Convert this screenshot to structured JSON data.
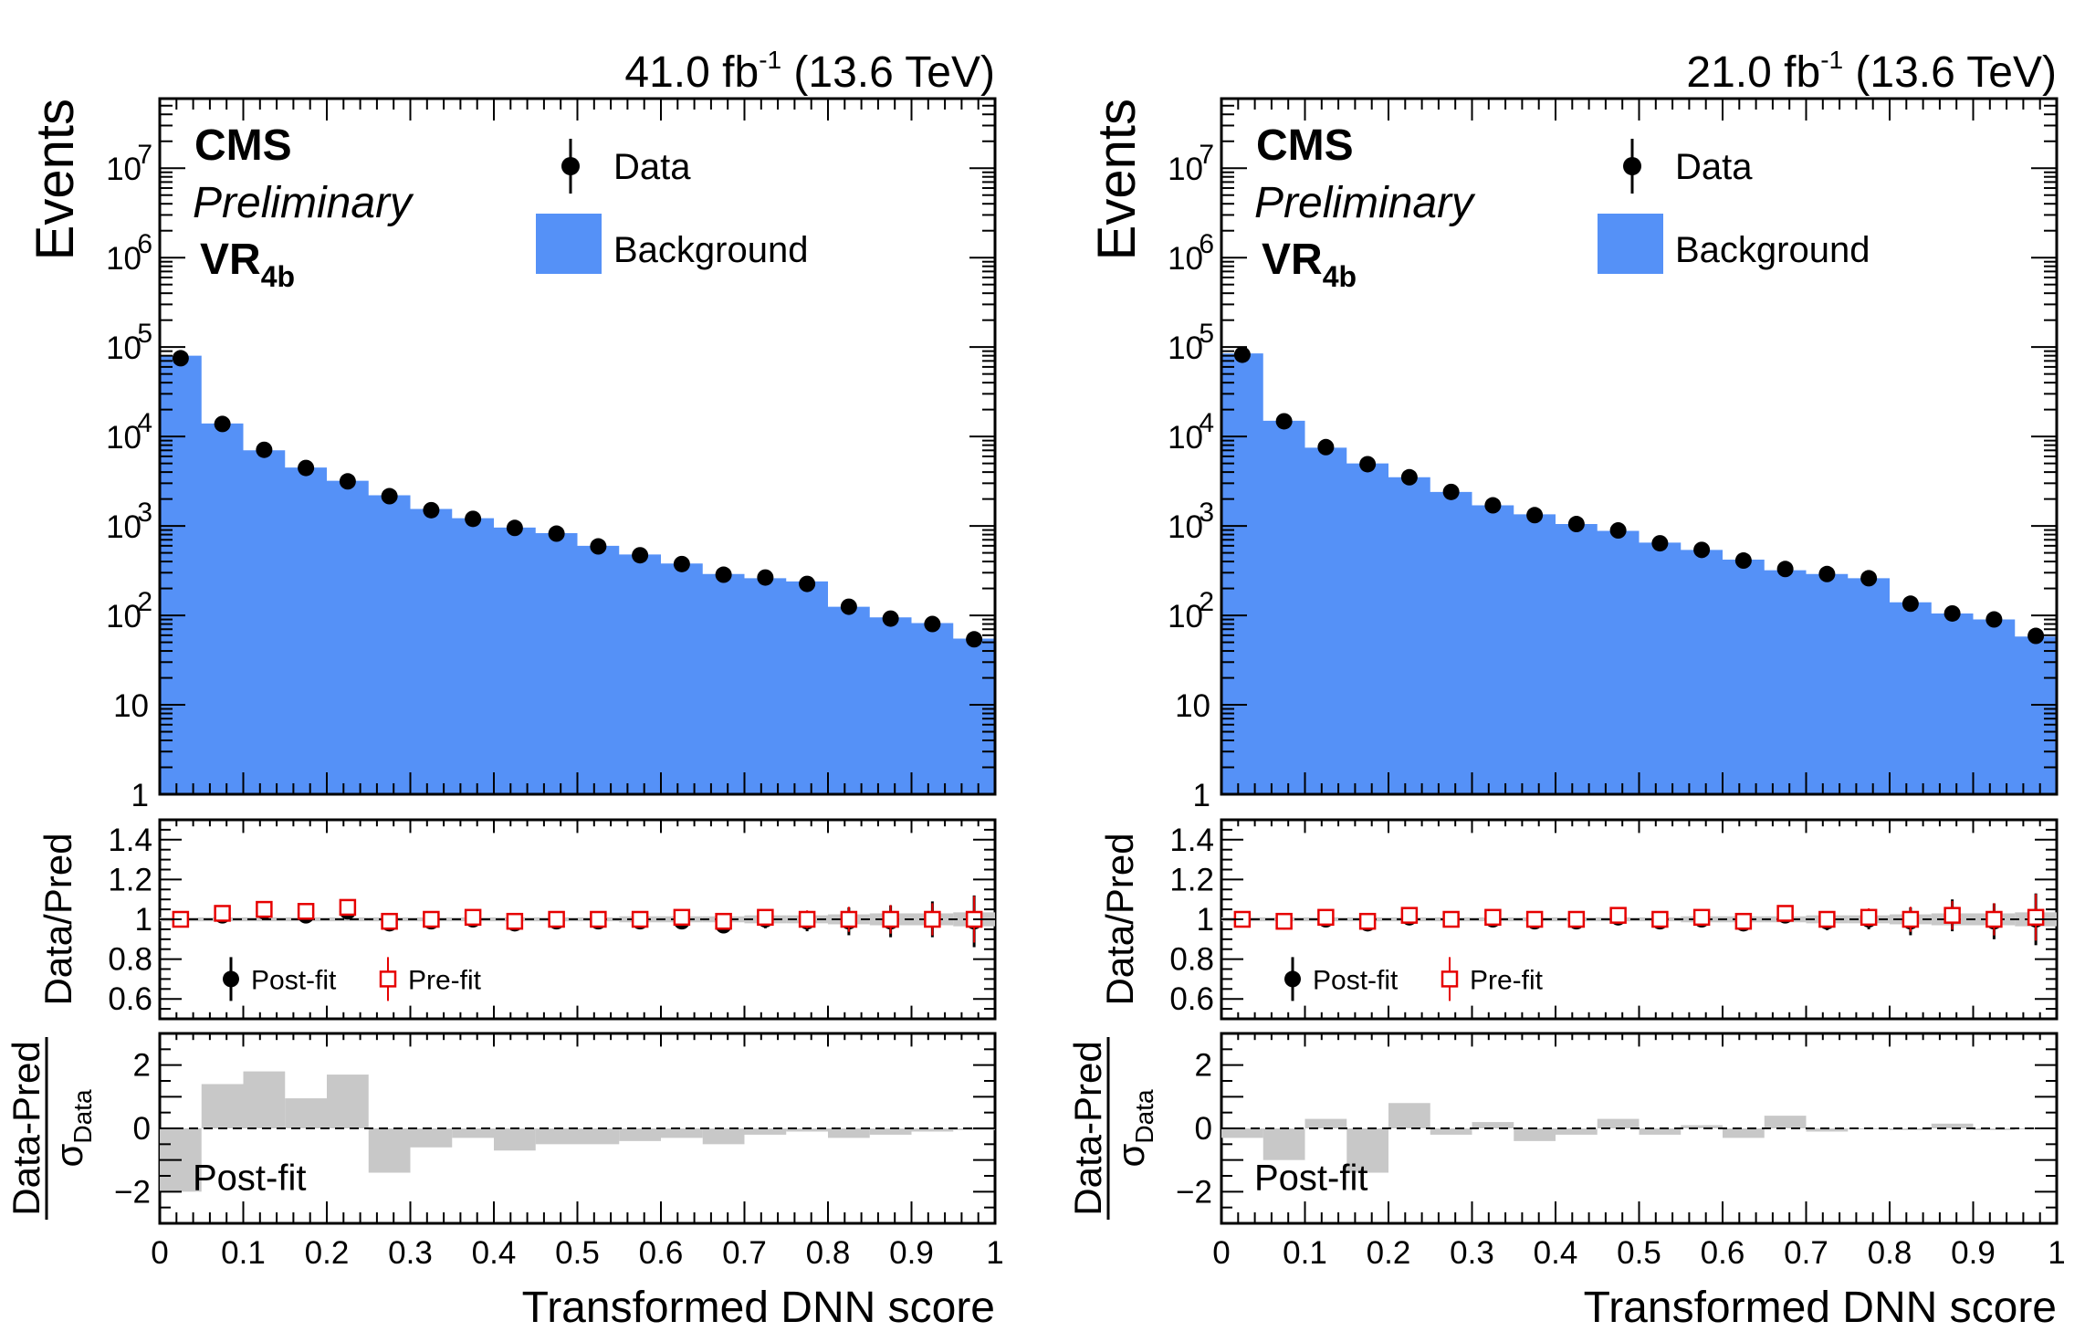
{
  "figure": {
    "colors": {
      "background": "#5591f7",
      "data": "#000000",
      "prefit": "#e60000",
      "band": "#c8c8c8",
      "pull": "#c8c8c8"
    }
  },
  "chart_data": [
    {
      "type": "bar",
      "panel": "left",
      "lumi_text": "41.0 fb",
      "lumi_exp": "-1",
      "energy_text": "(13.6 TeV)",
      "cms_label": "CMS",
      "preliminary_label": "Preliminary",
      "region_label": "VR",
      "region_sub": "4b",
      "legend_data": "Data",
      "legend_background": "Background",
      "ylabel": "Events",
      "xlabel": "Transformed DNN score",
      "ratio_ylabel": "Data/Pred",
      "pull_ylabel_num": "Data-Pred",
      "pull_ylabel_den": "σ",
      "pull_ylabel_den_sub": "Data",
      "ratio_legend_postfit": "Post-fit",
      "ratio_legend_prefit": "Pre-fit",
      "pull_label": "Post-fit",
      "ylim": [
        1,
        60000000
      ],
      "ratio_ylim": [
        0.5,
        1.5
      ],
      "pull_ylim": [
        -3,
        3
      ],
      "xlim": [
        0,
        1
      ],
      "bin_edges": [
        0,
        0.05,
        0.1,
        0.15,
        0.2,
        0.25,
        0.3,
        0.35,
        0.4,
        0.45,
        0.5,
        0.55,
        0.6,
        0.65,
        0.7,
        0.75,
        0.8,
        0.85,
        0.9,
        0.95,
        1.0
      ],
      "background": [
        80000,
        14000,
        7000,
        4500,
        3200,
        2200,
        1550,
        1220,
        960,
        830,
        600,
        480,
        380,
        290,
        260,
        240,
        125,
        95,
        82,
        55
      ],
      "data": [
        75000,
        13800,
        7100,
        4450,
        3150,
        2150,
        1500,
        1200,
        950,
        820,
        590,
        470,
        375,
        285,
        265,
        225,
        125,
        92,
        80,
        54
      ],
      "data_err_log": [
        0.02,
        0.02,
        0.02,
        0.02,
        0.02,
        0.02,
        0.03,
        0.03,
        0.03,
        0.03,
        0.03,
        0.03,
        0.04,
        0.04,
        0.04,
        0.05,
        0.05,
        0.06,
        0.07,
        0.08
      ],
      "ratio_postfit": [
        1.0,
        1.02,
        1.04,
        1.02,
        1.04,
        0.98,
        0.99,
        1.0,
        0.98,
        0.99,
        0.99,
        0.99,
        0.99,
        0.97,
        1.0,
        0.99,
        0.99,
        0.99,
        1.0,
        0.99
      ],
      "ratio_postfit_err": [
        0.01,
        0.01,
        0.015,
        0.015,
        0.02,
        0.02,
        0.02,
        0.02,
        0.025,
        0.025,
        0.03,
        0.03,
        0.035,
        0.04,
        0.045,
        0.05,
        0.07,
        0.08,
        0.09,
        0.13
      ],
      "ratio_prefit": [
        1.0,
        1.03,
        1.05,
        1.04,
        1.06,
        0.99,
        1.0,
        1.01,
        0.99,
        1.0,
        1.0,
        1.0,
        1.01,
        0.99,
        1.01,
        1.0,
        1.0,
        1.0,
        1.0,
        1.0
      ],
      "ratio_band": [
        0.01,
        0.01,
        0.01,
        0.01,
        0.01,
        0.01,
        0.01,
        0.01,
        0.01,
        0.01,
        0.01,
        0.015,
        0.015,
        0.015,
        0.02,
        0.02,
        0.025,
        0.03,
        0.03,
        0.035
      ],
      "pull": [
        -2.0,
        1.4,
        1.8,
        0.95,
        1.7,
        -1.4,
        -0.6,
        -0.3,
        -0.7,
        -0.5,
        -0.5,
        -0.4,
        -0.3,
        -0.5,
        -0.2,
        -0.1,
        -0.3,
        -0.2,
        -0.1,
        -0.05
      ],
      "yticks_main": [
        {
          "v": 10000000,
          "base": "10",
          "exp": "7"
        },
        {
          "v": 1000000,
          "base": "10",
          "exp": "6"
        },
        {
          "v": 100000,
          "base": "10",
          "exp": "5"
        },
        {
          "v": 10000,
          "base": "10",
          "exp": "4"
        },
        {
          "v": 1000,
          "base": "10",
          "exp": "3"
        },
        {
          "v": 100,
          "base": "10",
          "exp": "2"
        },
        {
          "v": 10,
          "base": "10",
          "exp": ""
        },
        {
          "v": 1,
          "base": "1",
          "exp": ""
        }
      ],
      "yticks_ratio": [
        {
          "v": 1.4,
          "label": "1.4"
        },
        {
          "v": 1.2,
          "label": "1.2"
        },
        {
          "v": 1.0,
          "label": "1"
        },
        {
          "v": 0.8,
          "label": "0.8"
        },
        {
          "v": 0.6,
          "label": "0.6"
        }
      ],
      "yticks_pull": [
        {
          "v": 2,
          "label": "2"
        },
        {
          "v": 0,
          "label": "0"
        },
        {
          "v": -2,
          "label": "−2"
        }
      ],
      "xticks": [
        {
          "v": 0,
          "label": "0"
        },
        {
          "v": 0.1,
          "label": "0.1"
        },
        {
          "v": 0.2,
          "label": "0.2"
        },
        {
          "v": 0.3,
          "label": "0.3"
        },
        {
          "v": 0.4,
          "label": "0.4"
        },
        {
          "v": 0.5,
          "label": "0.5"
        },
        {
          "v": 0.6,
          "label": "0.6"
        },
        {
          "v": 0.7,
          "label": "0.7"
        },
        {
          "v": 0.8,
          "label": "0.8"
        },
        {
          "v": 0.9,
          "label": "0.9"
        },
        {
          "v": 1.0,
          "label": "1"
        }
      ]
    },
    {
      "type": "bar",
      "panel": "right",
      "lumi_text": "21.0 fb",
      "lumi_exp": "-1",
      "energy_text": "(13.6 TeV)",
      "cms_label": "CMS",
      "preliminary_label": "Preliminary",
      "region_label": "VR",
      "region_sub": "4b",
      "legend_data": "Data",
      "legend_background": "Background",
      "ylabel": "Events",
      "xlabel": "Transformed DNN score",
      "ratio_ylabel": "Data/Pred",
      "pull_ylabel_num": "Data-Pred",
      "pull_ylabel_den": "σ",
      "pull_ylabel_den_sub": "Data",
      "ratio_legend_postfit": "Post-fit",
      "ratio_legend_prefit": "Pre-fit",
      "pull_label": "Post-fit",
      "ylim": [
        1,
        60000000
      ],
      "ratio_ylim": [
        0.5,
        1.5
      ],
      "pull_ylim": [
        -3,
        3
      ],
      "xlim": [
        0,
        1
      ],
      "bin_edges": [
        0,
        0.05,
        0.1,
        0.15,
        0.2,
        0.25,
        0.3,
        0.35,
        0.4,
        0.45,
        0.5,
        0.55,
        0.6,
        0.65,
        0.7,
        0.75,
        0.8,
        0.85,
        0.9,
        0.95,
        1.0
      ],
      "background": [
        85000,
        15000,
        7500,
        5000,
        3500,
        2400,
        1700,
        1350,
        1050,
        880,
        650,
        540,
        420,
        320,
        290,
        260,
        140,
        105,
        90,
        58
      ],
      "data": [
        82000,
        14800,
        7600,
        4900,
        3500,
        2400,
        1700,
        1320,
        1050,
        890,
        640,
        540,
        410,
        330,
        290,
        260,
        135,
        105,
        90,
        59
      ],
      "data_err_log": [
        0.02,
        0.02,
        0.02,
        0.02,
        0.02,
        0.02,
        0.03,
        0.03,
        0.03,
        0.03,
        0.03,
        0.03,
        0.04,
        0.04,
        0.04,
        0.05,
        0.05,
        0.06,
        0.07,
        0.08
      ],
      "ratio_postfit": [
        1.0,
        0.99,
        1.0,
        0.98,
        1.01,
        1.0,
        1.0,
        0.99,
        0.99,
        1.01,
        0.99,
        1.0,
        0.98,
        1.02,
        0.99,
        1.0,
        0.99,
        1.02,
        0.99,
        1.0
      ],
      "ratio_postfit_err": [
        0.01,
        0.01,
        0.015,
        0.015,
        0.02,
        0.02,
        0.02,
        0.02,
        0.025,
        0.025,
        0.03,
        0.03,
        0.035,
        0.04,
        0.045,
        0.05,
        0.07,
        0.08,
        0.09,
        0.13
      ],
      "ratio_prefit": [
        1.0,
        0.99,
        1.01,
        0.99,
        1.02,
        1.0,
        1.01,
        1.0,
        1.0,
        1.02,
        1.0,
        1.01,
        0.99,
        1.03,
        1.0,
        1.01,
        1.0,
        1.02,
        1.0,
        1.01
      ],
      "ratio_band": [
        0.01,
        0.01,
        0.01,
        0.01,
        0.01,
        0.01,
        0.01,
        0.01,
        0.01,
        0.01,
        0.01,
        0.015,
        0.015,
        0.015,
        0.02,
        0.02,
        0.025,
        0.03,
        0.03,
        0.035
      ],
      "pull": [
        -0.3,
        -1.0,
        0.3,
        -1.4,
        0.8,
        -0.2,
        0.2,
        -0.4,
        -0.2,
        0.3,
        -0.2,
        0.1,
        -0.3,
        0.4,
        -0.1,
        0.0,
        -0.05,
        0.15,
        -0.05,
        0.0
      ],
      "yticks_main": [
        {
          "v": 10000000,
          "base": "10",
          "exp": "7"
        },
        {
          "v": 1000000,
          "base": "10",
          "exp": "6"
        },
        {
          "v": 100000,
          "base": "10",
          "exp": "5"
        },
        {
          "v": 10000,
          "base": "10",
          "exp": "4"
        },
        {
          "v": 1000,
          "base": "10",
          "exp": "3"
        },
        {
          "v": 100,
          "base": "10",
          "exp": "2"
        },
        {
          "v": 10,
          "base": "10",
          "exp": ""
        },
        {
          "v": 1,
          "base": "1",
          "exp": ""
        }
      ],
      "yticks_ratio": [
        {
          "v": 1.4,
          "label": "1.4"
        },
        {
          "v": 1.2,
          "label": "1.2"
        },
        {
          "v": 1.0,
          "label": "1"
        },
        {
          "v": 0.8,
          "label": "0.8"
        },
        {
          "v": 0.6,
          "label": "0.6"
        }
      ],
      "yticks_pull": [
        {
          "v": 2,
          "label": "2"
        },
        {
          "v": 0,
          "label": "0"
        },
        {
          "v": -2,
          "label": "−2"
        }
      ],
      "xticks": [
        {
          "v": 0,
          "label": "0"
        },
        {
          "v": 0.1,
          "label": "0.1"
        },
        {
          "v": 0.2,
          "label": "0.2"
        },
        {
          "v": 0.3,
          "label": "0.3"
        },
        {
          "v": 0.4,
          "label": "0.4"
        },
        {
          "v": 0.5,
          "label": "0.5"
        },
        {
          "v": 0.6,
          "label": "0.6"
        },
        {
          "v": 0.7,
          "label": "0.7"
        },
        {
          "v": 0.8,
          "label": "0.8"
        },
        {
          "v": 0.9,
          "label": "0.9"
        },
        {
          "v": 1.0,
          "label": "1"
        }
      ]
    }
  ]
}
